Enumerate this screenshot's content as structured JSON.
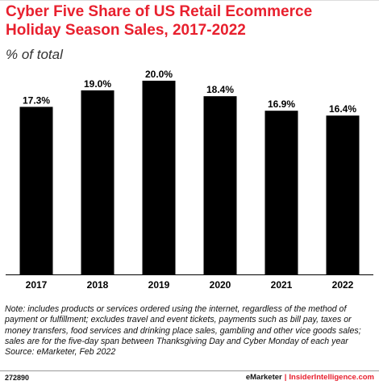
{
  "header": {
    "title": "Cyber Five Share of US Retail Ecommerce Holiday Season Sales, 2017-2022",
    "subtitle": "% of total"
  },
  "chart_data": {
    "type": "bar",
    "categories": [
      "2017",
      "2018",
      "2019",
      "2020",
      "2021",
      "2022"
    ],
    "values": [
      17.3,
      19.0,
      20.0,
      18.4,
      16.9,
      16.4
    ],
    "data_labels": [
      "17.3%",
      "19.0%",
      "20.0%",
      "18.4%",
      "16.9%",
      "16.4%"
    ],
    "title": "Cyber Five Share of US Retail Ecommerce Holiday Season Sales, 2017-2022",
    "xlabel": "",
    "ylabel": "% of total",
    "ylim": [
      0,
      20
    ],
    "grid": false,
    "bar_color": "#000000"
  },
  "footnote": {
    "note": "Note: includes products or services ordered using the internet, regardless of the method of payment or fulfillment; excludes travel and event tickets, payments such as bill pay, taxes or money transfers, food services and drinking place sales, gambling and other vice goods sales; sales are for the five-day span between Thanksgiving Day and Cyber Monday of each year",
    "source": "Source: eMarketer, Feb 2022"
  },
  "footer": {
    "chart_id": "272890",
    "brand": "eMarketer",
    "separator": "|",
    "site": "InsiderIntelligence.com"
  },
  "colors": {
    "title": "#e8202e",
    "bars": "#000000"
  }
}
